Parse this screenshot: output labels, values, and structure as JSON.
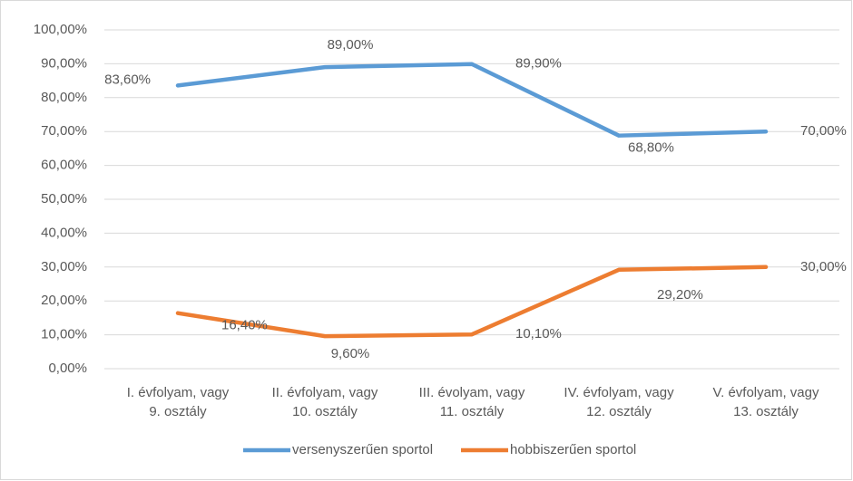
{
  "chart_data": {
    "type": "line",
    "categories": [
      "I. évfolyam, vagy\n9. osztály",
      "II. évfolyam, vagy\n10. osztály",
      "III. évolyam, vagy\n11. osztály",
      "IV. évfolyam, vagy\n12. osztály",
      "V. évfolyam, vagy\n13. osztály"
    ],
    "series": [
      {
        "name": "versenyszerűen sportol",
        "color": "#5b9bd5",
        "values": [
          83.6,
          89.0,
          89.9,
          68.8,
          70.0
        ],
        "value_labels": [
          "83,60%",
          "89,00%",
          "89,90%",
          "68,80%",
          "70,00%"
        ]
      },
      {
        "name": "hobbiszerűen sportol",
        "color": "#ed7d31",
        "values": [
          16.4,
          9.6,
          10.1,
          29.2,
          30.0
        ],
        "value_labels": [
          "16,40%",
          "9,60%",
          "10,10%",
          "29,20%",
          "30,00%"
        ]
      }
    ],
    "ylim": [
      0,
      100
    ],
    "yticks": [
      {
        "value": 0,
        "label": "0,00%"
      },
      {
        "value": 10,
        "label": "10,00%"
      },
      {
        "value": 20,
        "label": "20,00%"
      },
      {
        "value": 30,
        "label": "30,00%"
      },
      {
        "value": 40,
        "label": "40,00%"
      },
      {
        "value": 50,
        "label": "50,00%"
      },
      {
        "value": 60,
        "label": "60,00%"
      },
      {
        "value": 70,
        "label": "70,00%"
      },
      {
        "value": 80,
        "label": "80,00%"
      },
      {
        "value": 90,
        "label": "90,00%"
      },
      {
        "value": 100,
        "label": "100,00%"
      }
    ],
    "grid": true,
    "legend": "bottom"
  }
}
